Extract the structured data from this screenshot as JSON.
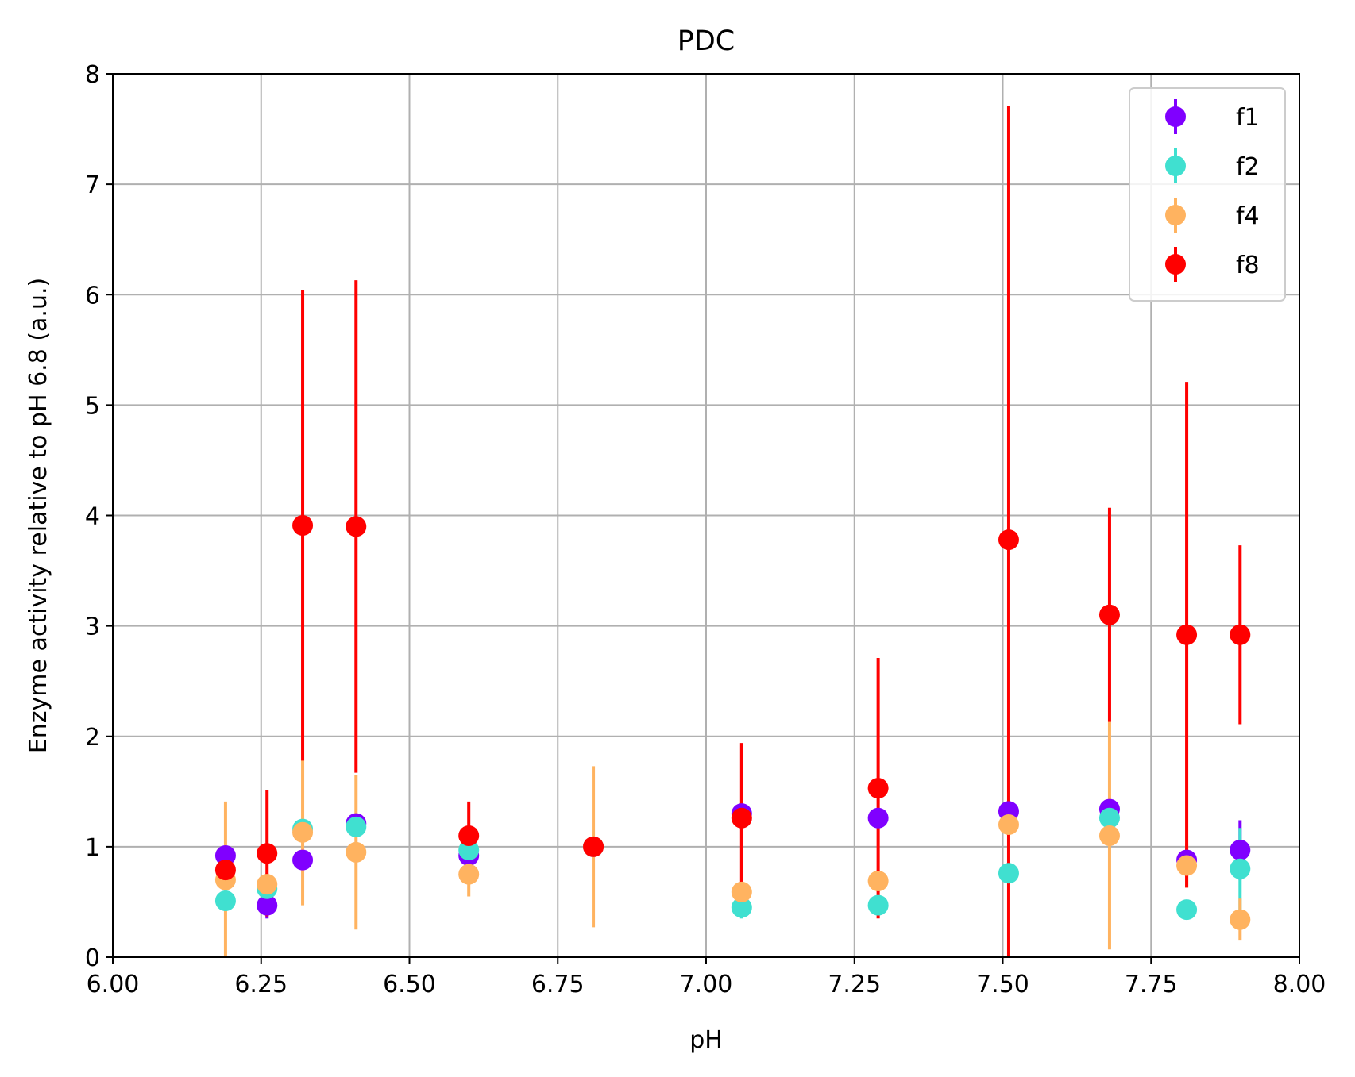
{
  "chart_data": {
    "type": "scatter",
    "title": "PDC",
    "xlabel": "pH",
    "ylabel": "Enzyme activity relative to pH 6.8 (a.u.)",
    "xlim": [
      6.0,
      8.0
    ],
    "ylim": [
      0,
      8
    ],
    "xticks": [
      "6.00",
      "6.25",
      "6.50",
      "6.75",
      "7.00",
      "7.25",
      "7.50",
      "7.75",
      "8.00"
    ],
    "yticks": [
      "0",
      "1",
      "2",
      "3",
      "4",
      "5",
      "6",
      "7",
      "8"
    ],
    "grid": true,
    "legend_position": "top-right",
    "series": [
      {
        "name": "f1",
        "color": "#8000ff",
        "points": [
          {
            "x": 6.19,
            "y": 0.92,
            "err": 0.05
          },
          {
            "x": 6.26,
            "y": 0.47,
            "err": 0.12
          },
          {
            "x": 6.32,
            "y": 0.88,
            "err": 0.06
          },
          {
            "x": 6.41,
            "y": 1.21,
            "err": 0.06
          },
          {
            "x": 6.6,
            "y": 0.92,
            "err": 0.05
          },
          {
            "x": 6.81,
            "y": 1.0,
            "err": 0.03
          },
          {
            "x": 7.06,
            "y": 1.3,
            "err": 0.06
          },
          {
            "x": 7.29,
            "y": 1.26,
            "err": 0.06
          },
          {
            "x": 7.51,
            "y": 1.32,
            "err": 0.06
          },
          {
            "x": 7.68,
            "y": 1.34,
            "err": 0.06
          },
          {
            "x": 7.81,
            "y": 0.88,
            "err": 0.05
          },
          {
            "x": 7.9,
            "y": 0.97,
            "err": 0.27
          }
        ]
      },
      {
        "name": "f2",
        "color": "#40e0d0",
        "points": [
          {
            "x": 6.19,
            "y": 0.51,
            "err": 0.04
          },
          {
            "x": 6.26,
            "y": 0.62,
            "err": 0.05
          },
          {
            "x": 6.32,
            "y": 1.16,
            "err": 0.05
          },
          {
            "x": 6.41,
            "y": 1.18,
            "err": 0.06
          },
          {
            "x": 6.6,
            "y": 0.97,
            "err": 0.05
          },
          {
            "x": 6.81,
            "y": 1.0,
            "err": 0.03
          },
          {
            "x": 7.06,
            "y": 0.45,
            "err": 0.1
          },
          {
            "x": 7.29,
            "y": 0.47,
            "err": 0.05
          },
          {
            "x": 7.51,
            "y": 0.76,
            "err": 0.05
          },
          {
            "x": 7.68,
            "y": 1.26,
            "err": 0.06
          },
          {
            "x": 7.81,
            "y": 0.43,
            "err": 0.05
          },
          {
            "x": 7.9,
            "y": 0.8,
            "err": 0.37
          }
        ]
      },
      {
        "name": "f4",
        "color": "#ffb360",
        "points": [
          {
            "x": 6.19,
            "y": 0.7,
            "err": 0.71
          },
          {
            "x": 6.26,
            "y": 0.66,
            "err": 0.1
          },
          {
            "x": 6.32,
            "y": 1.13,
            "err": 0.66
          },
          {
            "x": 6.41,
            "y": 0.95,
            "err": 0.7
          },
          {
            "x": 6.6,
            "y": 0.75,
            "err": 0.2
          },
          {
            "x": 6.81,
            "y": 1.0,
            "err": 0.73
          },
          {
            "x": 7.06,
            "y": 0.59,
            "err": 0.05
          },
          {
            "x": 7.29,
            "y": 0.69,
            "err": 0.1
          },
          {
            "x": 7.51,
            "y": 1.2,
            "err": 0.05
          },
          {
            "x": 7.68,
            "y": 1.1,
            "err": 1.03
          },
          {
            "x": 7.81,
            "y": 0.83,
            "err": 0.2
          },
          {
            "x": 7.9,
            "y": 0.34,
            "err": 0.19
          }
        ]
      },
      {
        "name": "f8",
        "color": "#ff0000",
        "points": [
          {
            "x": 6.19,
            "y": 0.79,
            "err": 0.04
          },
          {
            "x": 6.26,
            "y": 0.94,
            "err": 0.57
          },
          {
            "x": 6.32,
            "y": 3.91,
            "err": 2.13
          },
          {
            "x": 6.41,
            "y": 3.9,
            "err": 2.23
          },
          {
            "x": 6.6,
            "y": 1.1,
            "err": 0.31
          },
          {
            "x": 6.81,
            "y": 1.0,
            "err": 0.08
          },
          {
            "x": 7.06,
            "y": 1.26,
            "err": 0.68
          },
          {
            "x": 7.29,
            "y": 1.53,
            "err": 1.18
          },
          {
            "x": 7.51,
            "y": 3.78,
            "err": 3.93
          },
          {
            "x": 7.68,
            "y": 3.1,
            "err": 0.97
          },
          {
            "x": 7.81,
            "y": 2.92,
            "err": 2.29
          },
          {
            "x": 7.9,
            "y": 2.92,
            "err": 0.81
          }
        ]
      }
    ]
  }
}
